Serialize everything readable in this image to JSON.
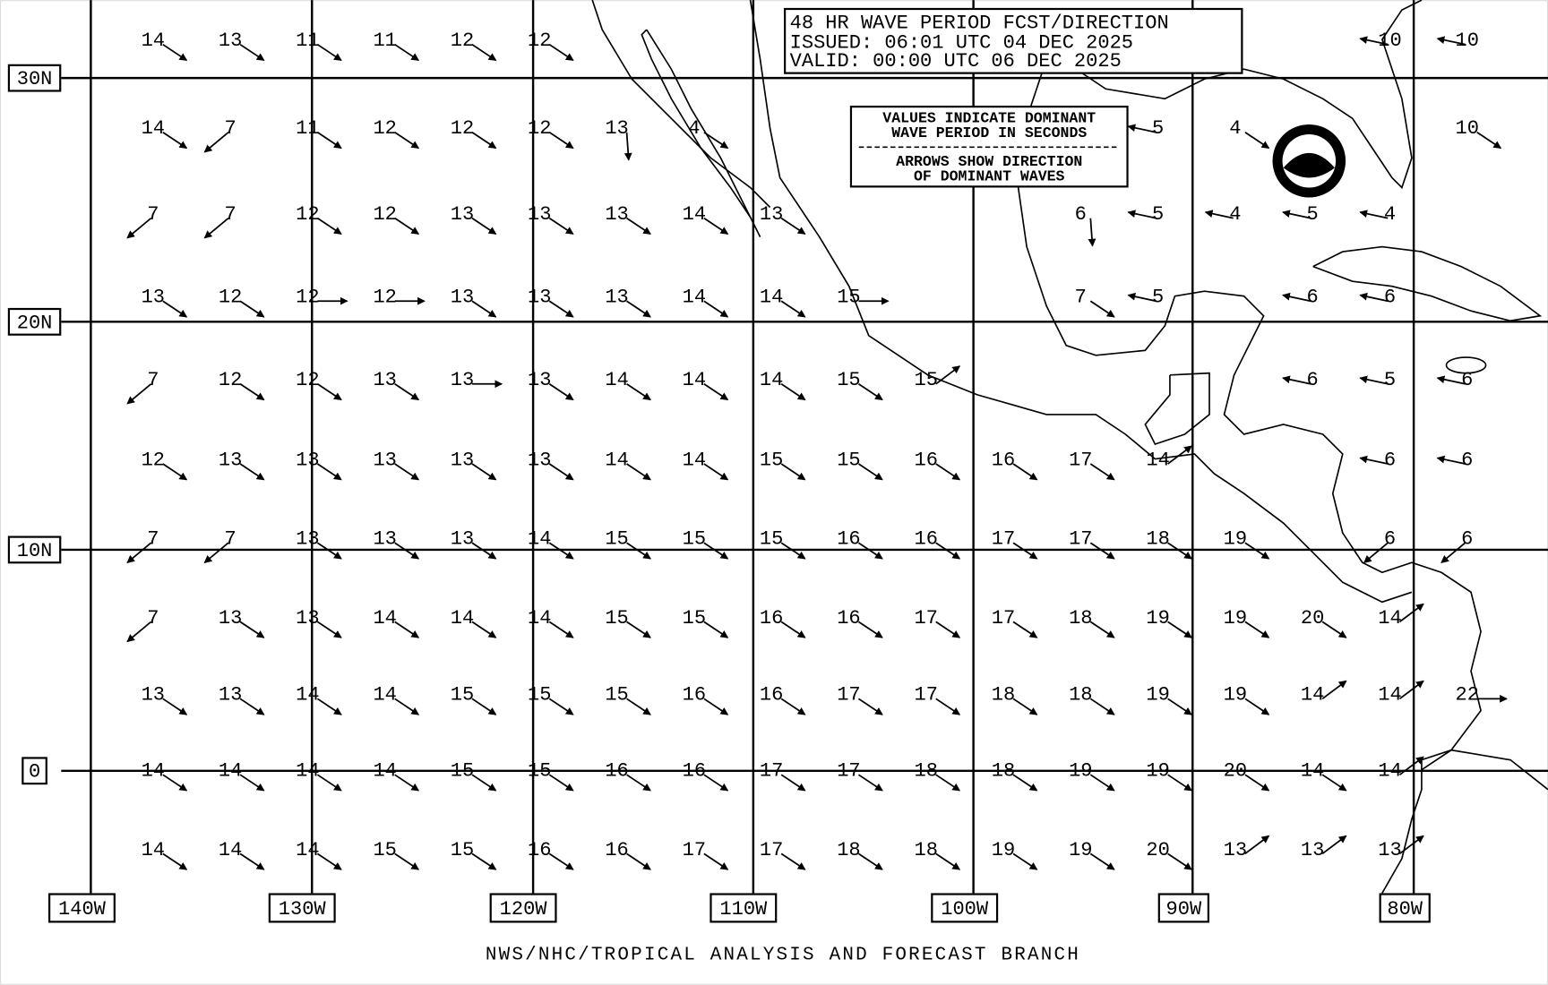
{
  "header": {
    "lines": [
      "48 HR WAVE PERIOD FCST/DIRECTION",
      "ISSUED:  06:01 UTC 04 DEC 2025",
      "VALID:   00:00 UTC 06 DEC 2025"
    ]
  },
  "note": {
    "lines": [
      "VALUES INDICATE DOMINANT",
      "WAVE PERIOD IN SECONDS",
      "ARROWS SHOW DIRECTION",
      "OF DOMINANT WAVES"
    ]
  },
  "lat_labels": [
    "30N",
    "20N",
    "10N",
    "0"
  ],
  "lon_labels": [
    "140W",
    "130W",
    "120W",
    "110W",
    "100W",
    "90W",
    "80W"
  ],
  "grid": {
    "rows": [
      [
        14,
        13,
        11,
        11,
        12,
        12,
        null,
        null,
        null,
        null,
        null,
        null,
        null,
        null,
        null,
        null,
        10,
        10
      ],
      [
        14,
        7,
        11,
        12,
        12,
        12,
        13,
        4,
        null,
        null,
        null,
        null,
        null,
        5,
        4,
        null,
        null,
        10
      ],
      [
        7,
        7,
        12,
        12,
        13,
        13,
        13,
        14,
        13,
        null,
        null,
        null,
        6,
        5,
        4,
        5,
        4,
        null
      ],
      [
        13,
        12,
        12,
        12,
        13,
        13,
        13,
        14,
        14,
        15,
        null,
        null,
        7,
        5,
        null,
        6,
        6,
        null
      ],
      [
        7,
        12,
        12,
        13,
        13,
        13,
        14,
        14,
        14,
        15,
        15,
        null,
        null,
        null,
        null,
        6,
        5,
        6
      ],
      [
        12,
        13,
        13,
        13,
        13,
        13,
        14,
        14,
        15,
        15,
        16,
        16,
        17,
        14,
        null,
        null,
        6,
        6
      ],
      [
        7,
        7,
        13,
        13,
        13,
        14,
        15,
        15,
        15,
        16,
        16,
        17,
        17,
        18,
        19,
        null,
        6,
        6
      ],
      [
        7,
        13,
        13,
        14,
        14,
        14,
        15,
        15,
        16,
        16,
        17,
        17,
        18,
        19,
        19,
        20,
        14,
        null
      ],
      [
        13,
        13,
        14,
        14,
        15,
        15,
        15,
        16,
        16,
        17,
        17,
        18,
        18,
        19,
        19,
        14,
        14,
        22
      ],
      [
        14,
        14,
        14,
        14,
        15,
        15,
        16,
        16,
        17,
        17,
        18,
        18,
        19,
        19,
        20,
        14,
        14,
        null
      ],
      [
        14,
        14,
        14,
        15,
        15,
        16,
        16,
        17,
        17,
        18,
        18,
        19,
        19,
        20,
        13,
        13,
        13,
        null
      ]
    ]
  },
  "footer": "NWS/NHC/TROPICAL ANALYSIS AND FORECAST BRANCH"
}
